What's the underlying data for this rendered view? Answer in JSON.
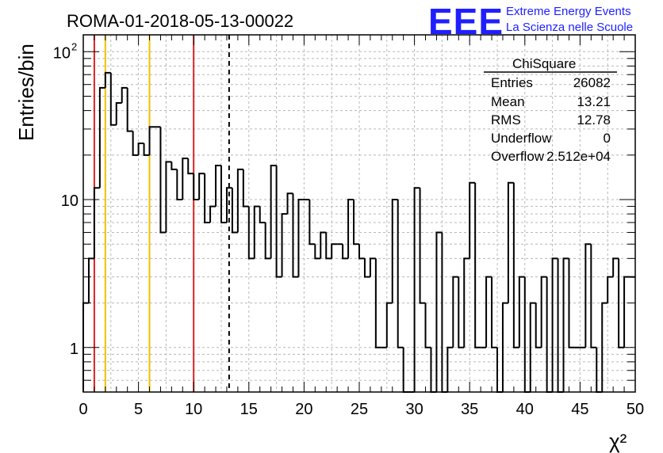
{
  "title": "ROMA-01-2018-05-13-00022",
  "logo": {
    "acronym": "EEE",
    "line1": "Extreme Energy Events",
    "line2": "La Scienza nelle Scuole"
  },
  "stats": {
    "name": "ChiSquare",
    "rows": [
      {
        "label": "Entries",
        "value": "26082"
      },
      {
        "label": "Mean",
        "value": "13.21"
      },
      {
        "label": "RMS",
        "value": "12.78"
      },
      {
        "label": "Underflow",
        "value": "0"
      },
      {
        "label": "Overflow",
        "value": "2.512e+04"
      }
    ]
  },
  "chart_data": {
    "type": "histogram",
    "title": "ROMA-01-2018-05-13-00022",
    "xlabel": "χ²",
    "ylabel": "Entries/bin",
    "xlim": [
      0,
      50
    ],
    "ylim": [
      0.5,
      130
    ],
    "log_y": true,
    "grid": true,
    "bin_width": 0.5,
    "x_ticks": [
      "0",
      "5",
      "10",
      "15",
      "20",
      "25",
      "30",
      "35",
      "40",
      "45",
      "50"
    ],
    "y_ticks": [
      {
        "value": 1,
        "label": "1"
      },
      {
        "value": 10,
        "label": "10"
      },
      {
        "value": 100,
        "label": "10",
        "sup": "2"
      }
    ],
    "counts": [
      2,
      4,
      12,
      57,
      72,
      32,
      45,
      57,
      29,
      20,
      24,
      20,
      31,
      31,
      6,
      18,
      16,
      10,
      19,
      15,
      10,
      15,
      7,
      9,
      17,
      7,
      12,
      6,
      16,
      9,
      4,
      9,
      7,
      4,
      17,
      3,
      8,
      11,
      3,
      10,
      10,
      5,
      4,
      6,
      4,
      5,
      5,
      4,
      10,
      5,
      4,
      3,
      4,
      1,
      1,
      2,
      10,
      1,
      0,
      0,
      12,
      2,
      1,
      0,
      6,
      0,
      1,
      3,
      1,
      4,
      13,
      1,
      1,
      3,
      1,
      0,
      2,
      13,
      1,
      3,
      0,
      2,
      1,
      3,
      0,
      4,
      0,
      4,
      1,
      1,
      1,
      5,
      1,
      0,
      2,
      3,
      4,
      1,
      3,
      3
    ],
    "vertical_lines": [
      {
        "x": 1,
        "color": "#e02020",
        "style": "solid"
      },
      {
        "x": 2,
        "color": "#f0c000",
        "style": "solid"
      },
      {
        "x": 6,
        "color": "#f0c000",
        "style": "solid"
      },
      {
        "x": 10,
        "color": "#e02020",
        "style": "solid"
      },
      {
        "x": 13.21,
        "color": "#000000",
        "style": "dashed"
      }
    ]
  }
}
